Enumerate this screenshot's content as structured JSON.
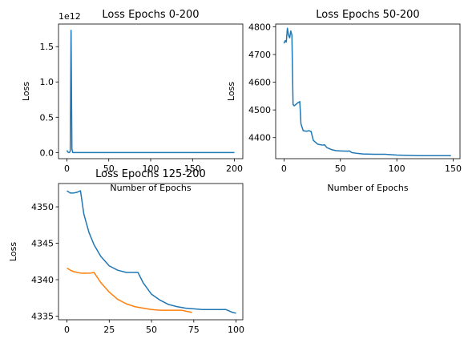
{
  "chart_data": [
    {
      "type": "line",
      "title": "Loss Epochs 0-200",
      "xlabel": "Number of Epochs",
      "ylabel": "Loss",
      "offset_text": "1e12",
      "xlim": [
        -10,
        210
      ],
      "ylim": [
        -0.087,
        1.82
      ],
      "grid": false,
      "xticks": [
        0,
        50,
        100,
        150,
        200
      ],
      "xtick_labels": [
        "0",
        "50",
        "100",
        "150",
        "200"
      ],
      "yticks": [
        0.0,
        0.5,
        1.0,
        1.5
      ],
      "ytick_labels": [
        "0.0",
        "0.5",
        "1.0",
        "1.5"
      ],
      "series": [
        {
          "color": "#1f77b4",
          "x": [
            0,
            1,
            2,
            3,
            4,
            5,
            6,
            7,
            8,
            9,
            10,
            50,
            100,
            150,
            200
          ],
          "y": [
            0.03,
            0.01,
            0.0,
            0.0,
            0.02,
            1.73,
            0.05,
            0.0,
            0.0,
            0.0,
            0.0,
            0.0,
            0.0,
            0.0,
            0.0
          ]
        }
      ]
    },
    {
      "type": "line",
      "title": "Loss Epochs 50-200",
      "xlabel": "Number of Epochs",
      "ylabel": "Loss",
      "xlim": [
        -7.4,
        156
      ],
      "ylim": [
        4324,
        4810
      ],
      "grid": false,
      "xticks": [
        0,
        50,
        100,
        150
      ],
      "xtick_labels": [
        "0",
        "50",
        "100",
        "150"
      ],
      "yticks": [
        4400,
        4500,
        4600,
        4700,
        4800
      ],
      "ytick_labels": [
        "4400",
        "4500",
        "4600",
        "4700",
        "4800"
      ],
      "series": [
        {
          "color": "#1f77b4",
          "x": [
            0,
            1,
            2,
            3,
            4,
            5,
            6,
            7,
            8,
            9,
            10,
            12,
            14,
            15,
            17,
            20,
            22,
            24,
            26,
            30,
            34,
            36,
            38,
            42,
            46,
            50,
            56,
            58,
            60,
            65,
            70,
            80,
            90,
            92,
            100,
            110,
            120,
            130,
            140,
            148
          ],
          "y": [
            4740,
            4750,
            4745,
            4795,
            4770,
            4760,
            4785,
            4770,
            4520,
            4515,
            4518,
            4525,
            4530,
            4450,
            4425,
            4423,
            4425,
            4422,
            4390,
            4376,
            4373,
            4374,
            4364,
            4357,
            4353,
            4352,
            4351,
            4352,
            4346,
            4343,
            4341,
            4340,
            4340,
            4339,
            4337,
            4336,
            4335,
            4335,
            4335,
            4335
          ]
        }
      ]
    },
    {
      "type": "line",
      "title": "Loss Epochs 125-200",
      "xlabel": "",
      "ylabel": "Loss",
      "xlim": [
        -5,
        104
      ],
      "ylim": [
        4334.5,
        4353.2
      ],
      "grid": false,
      "xticks": [
        0,
        25,
        50,
        75,
        100
      ],
      "xtick_labels": [
        "0",
        "25",
        "50",
        "75",
        "100"
      ],
      "yticks": [
        4335,
        4340,
        4345,
        4350
      ],
      "ytick_labels": [
        "4335",
        "4340",
        "4345",
        "4350"
      ],
      "series": [
        {
          "color": "#1f77b4",
          "x": [
            0,
            2,
            4,
            6,
            8,
            10,
            13,
            16,
            20,
            25,
            30,
            35,
            40,
            42,
            45,
            50,
            55,
            60,
            65,
            70,
            75,
            80,
            85,
            90,
            94,
            96,
            98,
            100
          ],
          "y": [
            4352.2,
            4351.9,
            4351.9,
            4352.0,
            4352.2,
            4349.0,
            4346.5,
            4344.8,
            4343.2,
            4341.9,
            4341.3,
            4341.0,
            4341.0,
            4341.0,
            4339.6,
            4338.0,
            4337.2,
            4336.6,
            4336.3,
            4336.1,
            4336.0,
            4335.9,
            4335.9,
            4335.9,
            4335.9,
            4335.7,
            4335.5,
            4335.4
          ]
        },
        {
          "color": "#ff7f0e",
          "x": [
            0,
            2,
            4,
            6,
            8,
            10,
            12,
            14,
            16,
            20,
            25,
            30,
            35,
            40,
            45,
            50,
            55,
            60,
            65,
            68,
            70,
            72,
            74
          ],
          "y": [
            4341.6,
            4341.3,
            4341.1,
            4341.0,
            4340.9,
            4340.9,
            4340.9,
            4340.9,
            4341.0,
            4339.6,
            4338.3,
            4337.3,
            4336.7,
            4336.3,
            4336.1,
            4335.9,
            4335.8,
            4335.8,
            4335.8,
            4335.8,
            4335.7,
            4335.6,
            4335.5
          ]
        }
      ]
    }
  ]
}
